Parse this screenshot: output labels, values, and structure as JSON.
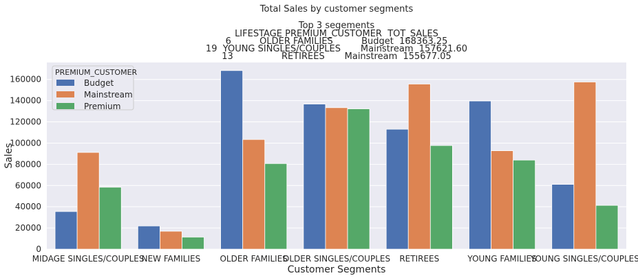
{
  "chart_data": {
    "type": "bar",
    "title": "Total Sales by customer segments",
    "subtitle_lines": [
      "Top 3 segements",
      "LIFESTAGE PREMIUM_CUSTOMER  TOT_SALES",
      "6          OLDER FAMILIES          Budget  168363.25",
      "19  YOUNG SINGLES/COUPLES       Mainstream  157621.60",
      "13                 RETIREES       Mainstream  155677.05"
    ],
    "xlabel": "Customer Segments",
    "ylabel": "Sales",
    "ylim": [
      0,
      176000
    ],
    "yticks": [
      0,
      20000,
      40000,
      60000,
      80000,
      100000,
      120000,
      140000,
      160000
    ],
    "grid": true,
    "legend": {
      "title": "PREMIUM_CUSTOMER",
      "placement": "top-left"
    },
    "categories": [
      "MIDAGE SINGLES/COUPLES",
      "NEW FAMILIES",
      "OLDER FAMILIES",
      "OLDER SINGLES/COUPLES",
      "RETIREES",
      "YOUNG FAMILIES",
      "YOUNG SINGLES/COUPLES"
    ],
    "series": [
      {
        "name": "Budget",
        "color": "#4c72b0",
        "values": [
          35500,
          21900,
          168363.25,
          136800,
          113100,
          139700,
          61100
        ]
      },
      {
        "name": "Mainstream",
        "color": "#dd8452",
        "values": [
          91200,
          16900,
          103400,
          133400,
          155677.05,
          92800,
          157621.6
        ]
      },
      {
        "name": "Premium",
        "color": "#55a868",
        "values": [
          58400,
          11400,
          80700,
          132300,
          97700,
          84000,
          41300
        ]
      }
    ]
  }
}
